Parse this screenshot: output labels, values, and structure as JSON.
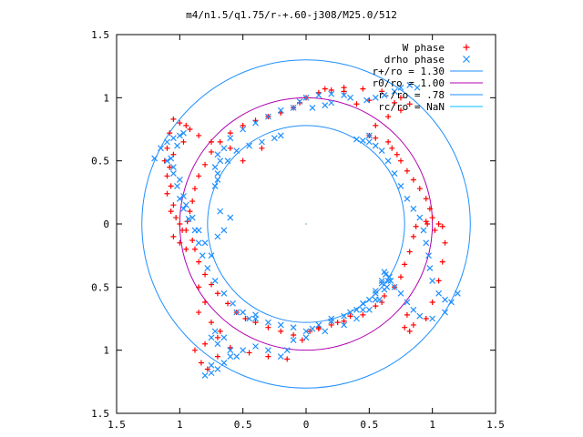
{
  "chart_data": {
    "type": "scatter",
    "title": "m4/n1.5/q1.75/r-+.60-j308/M25.0/512",
    "xlim": [
      -1.5,
      1.5
    ],
    "ylim": [
      -1.5,
      1.5
    ],
    "x_tick_values": [
      -1.5,
      -1,
      -0.5,
      0,
      0.5,
      1,
      1.5
    ],
    "x_tick_labels": [
      "1.5",
      "1",
      "0.5",
      "0",
      "0.5",
      "1",
      "1.5"
    ],
    "y_tick_values": [
      1.5,
      1,
      0.5,
      0,
      -0.5,
      -1,
      -1.5
    ],
    "y_tick_labels": [
      "1.5",
      "1",
      "0.5",
      "0",
      "0.5",
      "1",
      "1.5"
    ],
    "grid": false,
    "legend_position": "top-right",
    "legend": [
      {
        "label": "W phase",
        "color": "#ff0000",
        "marker": "plus"
      },
      {
        "label": "drho phase",
        "color": "#1f8fff",
        "marker": "cross"
      },
      {
        "label": "r+/ro = 1.30",
        "color": "#1f8fff",
        "marker": "line"
      },
      {
        "label": "r0/ro = 1.00",
        "color": "#b000b0",
        "marker": "line"
      },
      {
        "label": "r-/ro = .78",
        "color": "#1f8fff",
        "marker": "line"
      },
      {
        "label": "rc/ro = NaN",
        "color": "#00c0ff",
        "marker": "line"
      }
    ],
    "circles": [
      {
        "name": "r+/ro = 1.30",
        "r": 1.3,
        "color": "#1f8fff"
      },
      {
        "name": "r0/ro = 1.00",
        "r": 1.0,
        "color": "#b000b0"
      },
      {
        "name": "r-/ro = .78",
        "r": 0.78,
        "color": "#1f8fff"
      }
    ],
    "series": [
      {
        "name": "W phase",
        "color": "#ff0000",
        "marker": "plus",
        "points": [
          [
            -1.05,
            0.83
          ],
          [
            -1.0,
            0.8
          ],
          [
            -0.95,
            0.78
          ],
          [
            -0.92,
            0.75
          ],
          [
            -0.97,
            0.65
          ],
          [
            -1.05,
            0.55
          ],
          [
            -1.08,
            0.45
          ],
          [
            -1.07,
            0.3
          ],
          [
            -1.05,
            0.15
          ],
          [
            -1.03,
            0.05
          ],
          [
            -0.95,
            -0.05
          ],
          [
            -0.9,
            -0.13
          ],
          [
            -0.88,
            -0.2
          ],
          [
            -0.85,
            -0.3
          ],
          [
            -0.8,
            -0.4
          ],
          [
            -0.75,
            -0.48
          ],
          [
            -0.7,
            -0.55
          ],
          [
            -0.62,
            -0.63
          ],
          [
            -0.55,
            -0.7
          ],
          [
            -0.48,
            -0.75
          ],
          [
            -0.4,
            -0.78
          ],
          [
            -0.3,
            -0.82
          ],
          [
            -0.2,
            -0.85
          ],
          [
            -0.1,
            -0.88
          ],
          [
            -0.03,
            -0.92
          ],
          [
            0.03,
            -0.85
          ],
          [
            0.1,
            -0.82
          ],
          [
            0.2,
            -0.8
          ],
          [
            0.3,
            -0.77
          ],
          [
            0.45,
            -0.72
          ],
          [
            0.55,
            -0.65
          ],
          [
            0.62,
            -0.57
          ],
          [
            0.7,
            -0.5
          ],
          [
            0.75,
            -0.42
          ],
          [
            0.78,
            -0.32
          ],
          [
            0.82,
            -0.22
          ],
          [
            0.85,
            -0.1
          ],
          [
            0.87,
            -0.02
          ],
          [
            0.95,
            0.02
          ],
          [
            1.0,
            0.05
          ],
          [
            0.98,
            0.12
          ],
          [
            0.95,
            0.2
          ],
          [
            0.9,
            0.28
          ],
          [
            0.85,
            0.35
          ],
          [
            0.8,
            0.42
          ],
          [
            0.75,
            0.5
          ],
          [
            0.72,
            0.55
          ],
          [
            0.68,
            0.6
          ],
          [
            0.65,
            0.65
          ],
          [
            0.55,
            0.68
          ],
          [
            0.5,
            0.7
          ],
          [
            0.55,
            0.78
          ],
          [
            0.65,
            0.85
          ],
          [
            0.75,
            0.9
          ],
          [
            0.82,
            0.95
          ],
          [
            0.75,
            1.0
          ],
          [
            0.6,
            1.05
          ],
          [
            0.45,
            1.07
          ],
          [
            0.3,
            1.08
          ],
          [
            0.15,
            1.07
          ],
          [
            0.0,
            1.0
          ],
          [
            -0.1,
            0.92
          ],
          [
            -0.2,
            0.88
          ],
          [
            -0.3,
            0.85
          ],
          [
            -0.4,
            0.82
          ],
          [
            -0.5,
            0.78
          ],
          [
            -0.6,
            0.72
          ],
          [
            -0.68,
            0.65
          ],
          [
            -0.75,
            0.57
          ],
          [
            -0.8,
            0.47
          ],
          [
            -0.85,
            0.38
          ],
          [
            -0.88,
            0.28
          ],
          [
            -0.9,
            0.18
          ],
          [
            -0.92,
            0.1
          ],
          [
            -0.94,
            0.02
          ],
          [
            -0.98,
            -0.05
          ],
          [
            -1.05,
            -0.1
          ],
          [
            -1.0,
            -0.15
          ],
          [
            -0.95,
            -0.2
          ],
          [
            -0.85,
            -0.5
          ],
          [
            -0.8,
            -0.62
          ],
          [
            -0.85,
            -0.7
          ],
          [
            -0.75,
            -0.78
          ],
          [
            -0.68,
            -0.85
          ],
          [
            -0.7,
            -0.9
          ],
          [
            -0.8,
            -0.95
          ],
          [
            -0.88,
            -1.0
          ],
          [
            -0.83,
            -1.1
          ],
          [
            -0.78,
            -1.15
          ],
          [
            -0.7,
            -1.05
          ],
          [
            -0.6,
            -0.98
          ],
          [
            -0.45,
            -1.02
          ],
          [
            -0.3,
            -1.05
          ],
          [
            -0.15,
            -1.07
          ],
          [
            0.1,
            -0.83
          ],
          [
            0.25,
            -0.78
          ],
          [
            0.35,
            -0.73
          ],
          [
            0.6,
            -0.62
          ],
          [
            0.8,
            -0.72
          ],
          [
            0.85,
            -0.8
          ],
          [
            0.78,
            -0.82
          ],
          [
            0.82,
            -0.85
          ],
          [
            0.95,
            -0.75
          ],
          [
            1.0,
            -0.62
          ],
          [
            1.05,
            -0.45
          ],
          [
            1.08,
            -0.3
          ],
          [
            1.1,
            -0.15
          ],
          [
            1.08,
            -0.02
          ],
          [
            0.96,
            0.0
          ],
          [
            1.05,
            0.0
          ],
          [
            1.02,
            -0.05
          ],
          [
            0.4,
            0.95
          ],
          [
            0.5,
            0.98
          ],
          [
            0.7,
            0.96
          ],
          [
            0.3,
            1.05
          ],
          [
            0.2,
            1.06
          ],
          [
            0.1,
            1.04
          ],
          [
            -0.05,
            0.96
          ],
          [
            -0.35,
            0.6
          ],
          [
            -0.5,
            0.5
          ],
          [
            -0.6,
            0.6
          ],
          [
            -0.75,
            0.65
          ],
          [
            -0.85,
            0.7
          ],
          [
            -1.08,
            0.72
          ],
          [
            -1.1,
            0.6
          ],
          [
            -1.12,
            0.5
          ],
          [
            -1.1,
            0.38
          ],
          [
            -1.1,
            0.24
          ],
          [
            -1.07,
            0.1
          ],
          [
            -1.0,
            0.0
          ]
        ]
      },
      {
        "name": "drho phase",
        "color": "#1f8fff",
        "marker": "cross",
        "points": [
          [
            -1.2,
            0.52
          ],
          [
            -1.15,
            0.6
          ],
          [
            -1.1,
            0.65
          ],
          [
            -1.05,
            0.68
          ],
          [
            -1.0,
            0.7
          ],
          [
            -0.97,
            0.72
          ],
          [
            -1.02,
            0.62
          ],
          [
            -1.07,
            0.52
          ],
          [
            -1.05,
            0.4
          ],
          [
            -1.02,
            0.3
          ],
          [
            -1.0,
            0.2
          ],
          [
            -0.97,
            0.12
          ],
          [
            -0.93,
            0.04
          ],
          [
            -0.88,
            -0.05
          ],
          [
            -0.85,
            -0.15
          ],
          [
            -0.82,
            -0.25
          ],
          [
            -0.78,
            -0.35
          ],
          [
            -0.72,
            -0.45
          ],
          [
            -0.65,
            -0.55
          ],
          [
            -0.58,
            -0.63
          ],
          [
            -0.5,
            -0.7
          ],
          [
            -0.4,
            -0.75
          ],
          [
            -0.3,
            -0.78
          ],
          [
            -0.2,
            -0.8
          ],
          [
            -0.1,
            -0.82
          ],
          [
            0.0,
            -0.85
          ],
          [
            0.1,
            -0.8
          ],
          [
            0.2,
            -0.77
          ],
          [
            0.3,
            -0.73
          ],
          [
            0.4,
            -0.68
          ],
          [
            0.5,
            -0.6
          ],
          [
            0.55,
            -0.53
          ],
          [
            0.6,
            -0.45
          ],
          [
            0.62,
            -0.38
          ],
          [
            0.66,
            -0.42
          ],
          [
            0.64,
            -0.5
          ],
          [
            0.58,
            -0.6
          ],
          [
            0.5,
            -0.68
          ],
          [
            0.4,
            -0.75
          ],
          [
            0.3,
            -0.8
          ],
          [
            0.15,
            -0.85
          ],
          [
            0.0,
            -0.9
          ],
          [
            -0.1,
            -0.92
          ],
          [
            -0.15,
            -1.0
          ],
          [
            -0.2,
            -1.05
          ],
          [
            -0.3,
            -1.0
          ],
          [
            -0.4,
            -0.97
          ],
          [
            -0.5,
            -1.0
          ],
          [
            -0.55,
            -1.05
          ],
          [
            -0.65,
            -1.1
          ],
          [
            -0.75,
            -1.12
          ],
          [
            -0.8,
            -1.2
          ],
          [
            -0.75,
            -1.18
          ],
          [
            -0.7,
            -1.15
          ],
          [
            -0.6,
            -1.05
          ],
          [
            -0.7,
            -0.95
          ],
          [
            -0.75,
            -0.9
          ],
          [
            -0.72,
            -0.85
          ],
          [
            -0.65,
            -0.9
          ],
          [
            -0.6,
            -1.0
          ],
          [
            0.05,
            -0.83
          ],
          [
            0.2,
            -0.75
          ],
          [
            0.35,
            -0.7
          ],
          [
            0.45,
            -0.63
          ],
          [
            0.55,
            -0.55
          ],
          [
            0.6,
            -0.47
          ],
          [
            0.63,
            -0.4
          ],
          [
            0.67,
            -0.45
          ],
          [
            0.7,
            -0.5
          ],
          [
            0.75,
            -0.55
          ],
          [
            0.8,
            -0.62
          ],
          [
            0.85,
            -0.68
          ],
          [
            0.9,
            -0.73
          ],
          [
            1.0,
            -0.75
          ],
          [
            1.1,
            -0.7
          ],
          [
            1.15,
            -0.62
          ],
          [
            1.2,
            -0.55
          ],
          [
            1.1,
            -0.6
          ],
          [
            1.05,
            -0.55
          ],
          [
            1.0,
            -0.45
          ],
          [
            0.98,
            -0.35
          ],
          [
            0.97,
            -0.25
          ],
          [
            0.95,
            -0.15
          ],
          [
            0.93,
            -0.05
          ],
          [
            0.9,
            0.05
          ],
          [
            0.85,
            0.12
          ],
          [
            0.8,
            0.2
          ],
          [
            0.75,
            0.3
          ],
          [
            0.7,
            0.4
          ],
          [
            0.65,
            0.5
          ],
          [
            0.6,
            0.58
          ],
          [
            0.55,
            0.62
          ],
          [
            0.5,
            0.65
          ],
          [
            0.45,
            0.66
          ],
          [
            0.4,
            0.67
          ],
          [
            0.5,
            0.7
          ],
          [
            0.35,
            1.0
          ],
          [
            0.3,
            1.02
          ],
          [
            0.2,
            1.03
          ],
          [
            0.1,
            1.02
          ],
          [
            0.0,
            1.0
          ],
          [
            -0.05,
            0.97
          ],
          [
            -0.1,
            0.92
          ],
          [
            -0.2,
            0.9
          ],
          [
            -0.3,
            0.85
          ],
          [
            -0.4,
            0.8
          ],
          [
            -0.5,
            0.75
          ],
          [
            -0.6,
            0.68
          ],
          [
            -0.65,
            0.6
          ],
          [
            -0.68,
            0.5
          ],
          [
            -0.7,
            0.4
          ],
          [
            -0.72,
            0.3
          ],
          [
            -0.68,
            0.1
          ],
          [
            -0.6,
            0.05
          ],
          [
            -0.65,
            -0.05
          ],
          [
            -0.7,
            -0.1
          ],
          [
            -0.62,
            0.5
          ],
          [
            -0.55,
            0.58
          ],
          [
            -0.45,
            0.62
          ],
          [
            -0.35,
            0.65
          ],
          [
            -0.2,
            0.7
          ],
          [
            -0.25,
            0.68
          ],
          [
            -0.7,
            0.55
          ],
          [
            -0.72,
            0.45
          ],
          [
            -0.7,
            0.35
          ],
          [
            0.48,
            0.98
          ],
          [
            0.55,
            1.0
          ],
          [
            0.62,
            1.02
          ],
          [
            0.7,
            1.05
          ],
          [
            0.75,
            1.08
          ],
          [
            0.82,
            1.1
          ],
          [
            0.88,
            1.08
          ],
          [
            0.2,
            0.96
          ],
          [
            0.15,
            0.94
          ],
          [
            0.05,
            0.92
          ],
          [
            -1.1,
            0.5
          ],
          [
            -1.05,
            0.45
          ],
          [
            -1.0,
            0.35
          ],
          [
            -0.97,
            0.22
          ],
          [
            -0.95,
            0.15
          ],
          [
            -0.9,
            0.05
          ],
          [
            -0.85,
            -0.05
          ],
          [
            -0.8,
            -0.15
          ],
          [
            -0.75,
            -0.25
          ],
          [
            -0.55,
            -0.7
          ],
          [
            -0.45,
            -0.75
          ],
          [
            -0.4,
            -0.72
          ],
          [
            0.65,
            -0.45
          ],
          [
            0.62,
            -0.52
          ],
          [
            0.55,
            -0.6
          ],
          [
            0.45,
            -0.68
          ]
        ]
      }
    ]
  }
}
